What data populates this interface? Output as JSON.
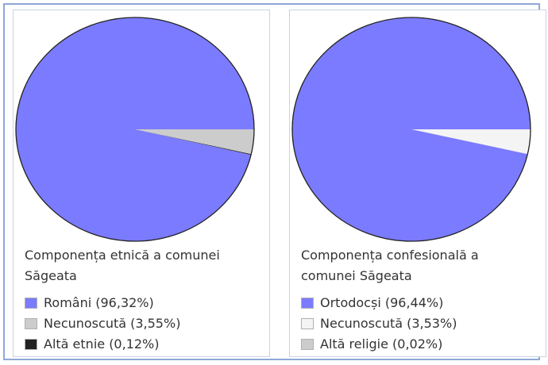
{
  "chart_data": [
    {
      "type": "pie",
      "title": "Componența etnică a comunei Săgeata",
      "categories": [
        "Români",
        "Necunoscută",
        "Altă etnie"
      ],
      "values": [
        96.32,
        3.55,
        0.12
      ],
      "colors": [
        "#7b7bff",
        "#cccccc",
        "#222222"
      ],
      "legend": [
        "Români (96,32%)",
        "Necunoscută (3,55%)",
        "Altă etnie (0,12%)"
      ],
      "legend_position": "bottom"
    },
    {
      "type": "pie",
      "title": "Componența confesională a comunei Săgeata",
      "categories": [
        "Ortodocși",
        "Necunoscută",
        "Altă religie"
      ],
      "values": [
        96.44,
        3.53,
        0.02
      ],
      "colors": [
        "#7b7bff",
        "#f4f4f4",
        "#cccccc"
      ],
      "legend": [
        "Ortodocși (96,44%)",
        "Necunoscută (3,53%)",
        "Altă religie (0,02%)"
      ],
      "legend_position": "bottom"
    }
  ]
}
